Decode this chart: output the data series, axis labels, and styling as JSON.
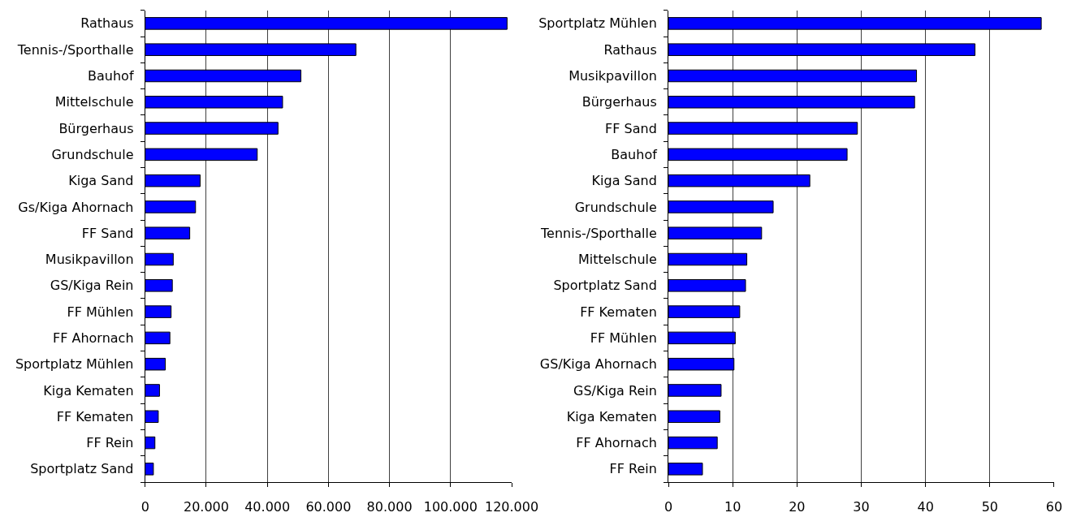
{
  "chart_data": [
    {
      "type": "bar",
      "orientation": "horizontal",
      "categories": [
        "Rathaus",
        "Tennis-/Sporthalle",
        "Bauhof",
        "Mittelschule",
        "Bürgerhaus",
        "Grundschule",
        "Kiga Sand",
        "Gs/Kiga Ahornach",
        "FF Sand",
        "Musikpavillon",
        "GS/Kiga Rein",
        "FF Mühlen",
        "FF Ahornach",
        "Sportplatz Mühlen",
        "Kiga Kematen",
        "FF Kematen",
        "FF Rein",
        "Sportplatz Sand"
      ],
      "values": [
        118500,
        69000,
        51000,
        45000,
        43500,
        36700,
        18000,
        16500,
        14600,
        9200,
        8900,
        8500,
        8100,
        6600,
        4700,
        4300,
        3200,
        2700
      ],
      "color": "#0000ff",
      "xlim": [
        0,
        120000
      ],
      "xticks": [
        0,
        {
          "value": 20000,
          "label": "20.000"
        },
        {
          "value": 40000,
          "label": "40.000"
        },
        {
          "value": 60000,
          "label": "60.000"
        },
        {
          "value": 80000,
          "label": "80.000"
        },
        {
          "value": 100000,
          "label": "100.000"
        },
        {
          "value": 120000,
          "label": "120.000"
        }
      ],
      "grid": "x"
    },
    {
      "type": "bar",
      "orientation": "horizontal",
      "categories": [
        "Sportplatz Mühlen",
        "Rathaus",
        "Musikpavillon",
        "Bürgerhaus",
        "FF Sand",
        "Bauhof",
        "Kiga Sand",
        "Grundschule",
        "Tennis-/Sporthalle",
        "Mittelschule",
        "Sportplatz Sand",
        "FF Kematen",
        "FF Mühlen",
        "GS/Kiga Ahornach",
        "GS/Kiga Rein",
        "Kiga Kematen",
        "FF Ahornach",
        "FF Rein"
      ],
      "values": [
        58.0,
        47.7,
        38.6,
        38.3,
        29.4,
        27.8,
        22.0,
        16.3,
        14.5,
        12.2,
        12.0,
        11.1,
        10.4,
        10.2,
        8.2,
        8.0,
        7.6,
        5.3
      ],
      "color": "#0000ff",
      "xlim": [
        0,
        60
      ],
      "xticks": [
        0,
        10,
        20,
        30,
        40,
        50,
        60
      ],
      "grid": "x"
    }
  ]
}
